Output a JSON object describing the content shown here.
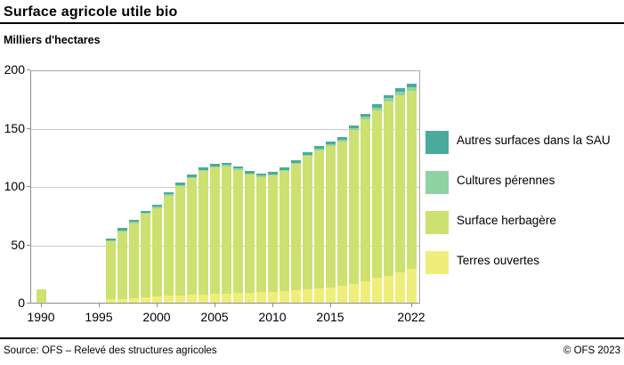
{
  "header": {
    "title": "Surface agricole utile bio"
  },
  "subtitle": "Milliers d'hectares",
  "footer": {
    "source": "Source: OFS – Relevé des structures agricoles",
    "copyright": "© OFS 2023"
  },
  "chart_data": {
    "type": "bar",
    "stacked": true,
    "title": "Surface agricole utile bio",
    "ylabel": "Milliers d'hectares",
    "ylim": [
      0,
      200
    ],
    "yticks": [
      0,
      50,
      100,
      150,
      200
    ],
    "grid": true,
    "legend_position": "right",
    "xticks": [
      {
        "label": "1990",
        "year": 1990
      },
      {
        "label": "1995",
        "year": 1995
      },
      {
        "label": "2000",
        "year": 2000
      },
      {
        "label": "2005",
        "year": 2005
      },
      {
        "label": "2010",
        "year": 2010
      },
      {
        "label": "2015",
        "year": 2015
      },
      {
        "label": "2022",
        "year": 2022
      }
    ],
    "years": [
      1990,
      1996,
      1997,
      1998,
      1999,
      2000,
      2001,
      2002,
      2003,
      2004,
      2005,
      2006,
      2007,
      2008,
      2009,
      2010,
      2011,
      2012,
      2013,
      2014,
      2015,
      2016,
      2017,
      2018,
      2019,
      2020,
      2021,
      2022
    ],
    "series": [
      {
        "name": "Terres ouvertes",
        "color": "#f0ee7a",
        "values": [
          1.0,
          3.0,
          3.3,
          3.8,
          4.6,
          5.1,
          5.9,
          6.4,
          6.9,
          7.1,
          7.6,
          7.9,
          8.1,
          8.4,
          8.9,
          9.4,
          9.7,
          10.4,
          11.2,
          12.2,
          13.2,
          14.5,
          16.3,
          18.6,
          21.1,
          23.2,
          25.7,
          28.8
        ]
      },
      {
        "name": "Surface herbagère",
        "color": "#cde170",
        "values": [
          10.7,
          50.0,
          58.0,
          64.4,
          71.5,
          76.0,
          86.0,
          93.5,
          100.0,
          105.8,
          108.3,
          109.0,
          105.8,
          101.5,
          99.0,
          99.5,
          103.2,
          108.5,
          114.7,
          118.6,
          121.5,
          124.0,
          132.0,
          139.0,
          144.0,
          149.5,
          152.5,
          153.2
        ]
      },
      {
        "name": "Cultures pérennes",
        "color": "#8fd3a3",
        "values": [
          0.0,
          0.7,
          0.9,
          1.0,
          1.0,
          1.0,
          1.1,
          1.1,
          1.1,
          1.1,
          1.1,
          1.1,
          1.1,
          1.1,
          1.1,
          1.1,
          1.1,
          1.1,
          1.1,
          1.2,
          1.3,
          1.5,
          1.7,
          2.0,
          2.4,
          2.6,
          2.8,
          3.0
        ]
      },
      {
        "name": "Autres surfaces dans la SAU",
        "color": "#49ab9d",
        "values": [
          0.0,
          1.3,
          1.8,
          1.8,
          1.9,
          1.9,
          2.0,
          2.0,
          2.0,
          2.0,
          2.0,
          2.0,
          2.0,
          2.0,
          2.0,
          2.0,
          2.0,
          2.0,
          2.0,
          2.0,
          2.0,
          2.0,
          2.0,
          2.4,
          2.5,
          2.7,
          3.0,
          3.0
        ]
      }
    ],
    "legend_order": [
      "Autres surfaces dans la SAU",
      "Cultures pérennes",
      "Surface herbagère",
      "Terres ouvertes"
    ]
  },
  "style_colors": {
    "gridline": "#cbcbcb",
    "axis": "#8c8c8c",
    "rule": "#000000"
  }
}
